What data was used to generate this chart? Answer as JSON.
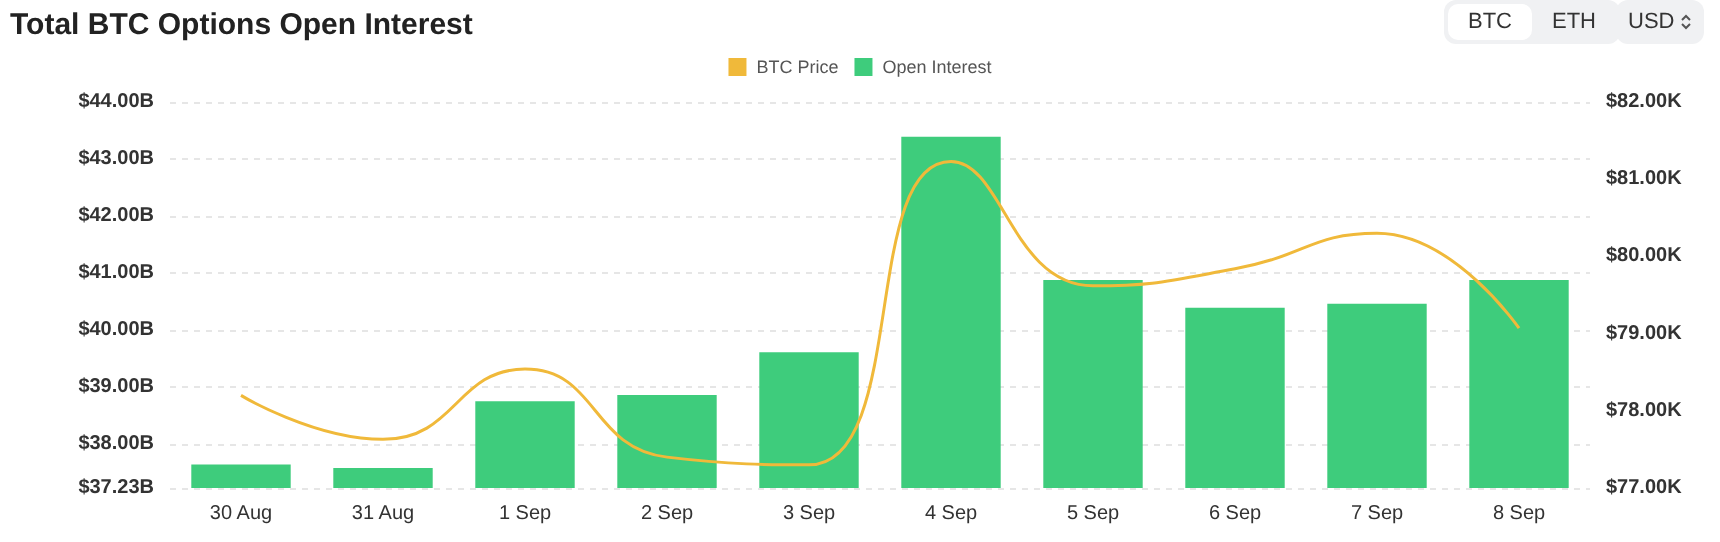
{
  "chart_data": {
    "type": "bar",
    "title": "Total BTC Options Open Interest",
    "categories": [
      "30 Aug",
      "31 Aug",
      "1 Sep",
      "2 Sep",
      "3 Sep",
      "4 Sep",
      "5 Sep",
      "6 Sep",
      "7 Sep",
      "8 Sep"
    ],
    "series": [
      {
        "name": "BTC Price",
        "type": "line",
        "axis": "y2",
        "color": "#f0b93a",
        "values": [
          78.2,
          77.63,
          78.54,
          77.4,
          77.3,
          81.23,
          79.62,
          79.84,
          80.3,
          79.07
        ]
      },
      {
        "name": "Open Interest",
        "color": "#3ecc7c",
        "values": [
          37.64,
          37.58,
          38.75,
          38.86,
          39.61,
          43.39,
          40.88,
          40.39,
          40.46,
          40.88
        ]
      }
    ],
    "ylim": [
      37.23,
      44
    ],
    "yticks": [
      {
        "value": 37.23,
        "label": "$37.23B"
      },
      {
        "value": 38,
        "label": "$38.00B"
      },
      {
        "value": 39,
        "label": "$39.00B"
      },
      {
        "value": 40,
        "label": "$40.00B"
      },
      {
        "value": 41,
        "label": "$41.00B"
      },
      {
        "value": 42,
        "label": "$42.00B"
      },
      {
        "value": 43,
        "label": "$43.00B"
      },
      {
        "value": 44,
        "label": "$44.00B"
      }
    ],
    "y2lim": [
      77,
      82
    ],
    "y2ticks": [
      {
        "value": 77,
        "label": "$77.00K"
      },
      {
        "value": 78,
        "label": "$78.00K"
      },
      {
        "value": 79,
        "label": "$79.00K"
      },
      {
        "value": 80,
        "label": "$80.00K"
      },
      {
        "value": 81,
        "label": "$81.00K"
      },
      {
        "value": 82,
        "label": "$82.00K"
      }
    ],
    "grid": "y",
    "legend": "top",
    "marker": "none",
    "annotations": [
      "BTC",
      "ETH",
      "USD"
    ]
  }
}
